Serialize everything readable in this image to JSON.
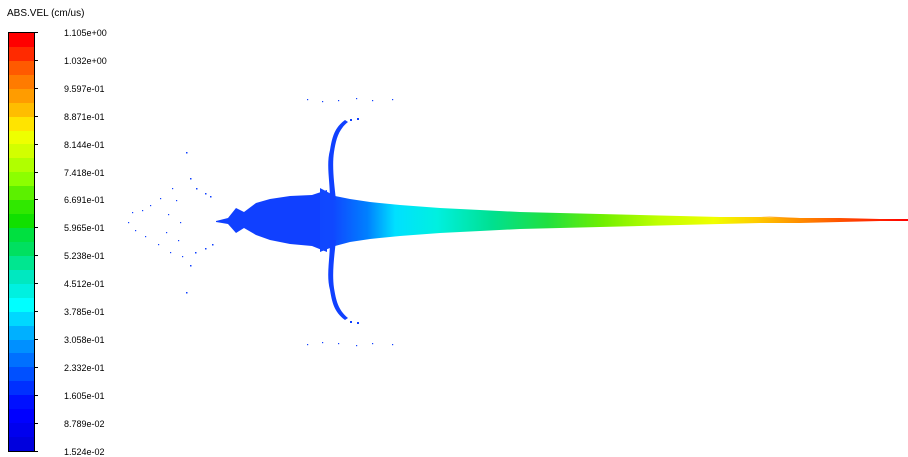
{
  "legend": {
    "title": "ABS.VEL (cm/us)",
    "tick_labels": [
      "1.105e+00",
      "1.032e+00",
      "9.597e-01",
      "8.871e-01",
      "8.144e-01",
      "7.418e-01",
      "6.691e-01",
      "5.965e-01",
      "5.238e-01",
      "4.512e-01",
      "3.785e-01",
      "3.058e-01",
      "2.332e-01",
      "1.605e-01",
      "8.789e-02",
      "1.524e-02"
    ],
    "band_colors": [
      "#ff0000",
      "#ff2a00",
      "#ff5a00",
      "#ff7b00",
      "#ff9c00",
      "#ffbd00",
      "#ffe400",
      "#eeff00",
      "#d2ff00",
      "#b0ff00",
      "#8cff00",
      "#5cf000",
      "#30e800",
      "#11e000",
      "#00e040",
      "#00e060",
      "#00e690",
      "#00e8c0",
      "#00f0e0",
      "#00ffff",
      "#00d8ff",
      "#00b0ff",
      "#0090ff",
      "#0070ff",
      "#0050ff",
      "#0030ff",
      "#0010ff",
      "#0000ff",
      "#0000ee",
      "#0000dd"
    ]
  }
}
